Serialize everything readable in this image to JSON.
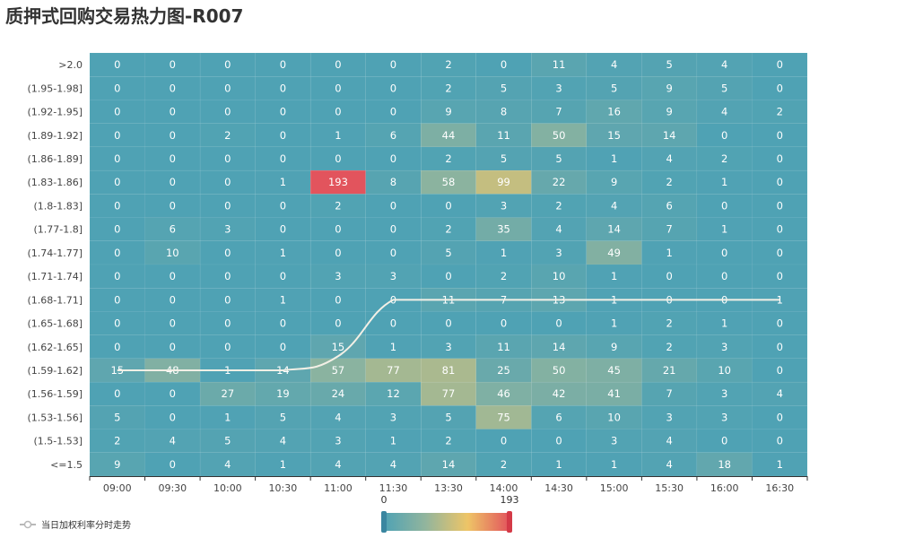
{
  "page": {
    "title": "质押式回购交易热力图-R007"
  },
  "chart_data": {
    "type": "heatmap",
    "title": "质押式回购交易热力图-R007",
    "x_categories": [
      "09:00",
      "09:30",
      "10:00",
      "10:30",
      "11:00",
      "11:30",
      "13:30",
      "14:00",
      "14:30",
      "15:00",
      "15:30",
      "16:00",
      "16:30"
    ],
    "y_categories": [
      ">2.0",
      "(1.95-1.98]",
      "(1.92-1.95]",
      "(1.89-1.92]",
      "(1.86-1.89]",
      "(1.83-1.86]",
      "(1.8-1.83]",
      "(1.77-1.8]",
      "(1.74-1.77]",
      "(1.71-1.74]",
      "(1.68-1.71]",
      "(1.65-1.68]",
      "(1.62-1.65]",
      "(1.59-1.62]",
      "(1.56-1.59]",
      "(1.53-1.56]",
      "(1.5-1.53]",
      "<=1.5"
    ],
    "values": [
      [
        0,
        0,
        0,
        0,
        0,
        0,
        2,
        0,
        11,
        4,
        5,
        4,
        0
      ],
      [
        0,
        0,
        0,
        0,
        0,
        0,
        2,
        5,
        3,
        5,
        9,
        5,
        0
      ],
      [
        0,
        0,
        0,
        0,
        0,
        0,
        9,
        8,
        7,
        16,
        9,
        4,
        2
      ],
      [
        0,
        0,
        2,
        0,
        1,
        6,
        44,
        11,
        50,
        15,
        14,
        0,
        0
      ],
      [
        0,
        0,
        0,
        0,
        0,
        0,
        2,
        5,
        5,
        1,
        4,
        2,
        0
      ],
      [
        0,
        0,
        0,
        1,
        193,
        8,
        58,
        99,
        22,
        9,
        2,
        1,
        0
      ],
      [
        0,
        0,
        0,
        0,
        2,
        0,
        0,
        3,
        2,
        4,
        6,
        0,
        0
      ],
      [
        0,
        6,
        3,
        0,
        0,
        0,
        2,
        35,
        4,
        14,
        7,
        1,
        0
      ],
      [
        0,
        10,
        0,
        1,
        0,
        0,
        5,
        1,
        3,
        49,
        1,
        0,
        0
      ],
      [
        0,
        0,
        0,
        0,
        3,
        3,
        0,
        2,
        10,
        1,
        0,
        0,
        0
      ],
      [
        0,
        0,
        0,
        1,
        0,
        0,
        11,
        7,
        13,
        1,
        0,
        0,
        1
      ],
      [
        0,
        0,
        0,
        0,
        0,
        0,
        0,
        0,
        0,
        1,
        2,
        1,
        0
      ],
      [
        0,
        0,
        0,
        0,
        15,
        1,
        3,
        11,
        14,
        9,
        2,
        3,
        0
      ],
      [
        15,
        48,
        1,
        14,
        57,
        77,
        81,
        25,
        50,
        45,
        21,
        10,
        0
      ],
      [
        0,
        0,
        27,
        19,
        24,
        12,
        77,
        46,
        42,
        41,
        7,
        3,
        4
      ],
      [
        5,
        0,
        1,
        5,
        4,
        3,
        5,
        75,
        6,
        10,
        3,
        3,
        0
      ],
      [
        2,
        4,
        5,
        4,
        3,
        1,
        2,
        0,
        0,
        3,
        4,
        0,
        0
      ],
      [
        9,
        0,
        4,
        1,
        4,
        4,
        14,
        2,
        1,
        1,
        4,
        18,
        1
      ]
    ],
    "trend_series": {
      "name": "当日加权利率分时走势",
      "y_row_index": [
        13,
        13,
        13,
        13,
        12.4,
        10,
        10,
        10,
        10,
        10,
        10,
        10,
        10
      ]
    },
    "visual_map": {
      "min": 0,
      "max": 193,
      "min_label": "0",
      "max_label": "193",
      "colors": [
        "#4fa2b4",
        "#92b59d",
        "#eec567",
        "#e2545d"
      ]
    }
  }
}
